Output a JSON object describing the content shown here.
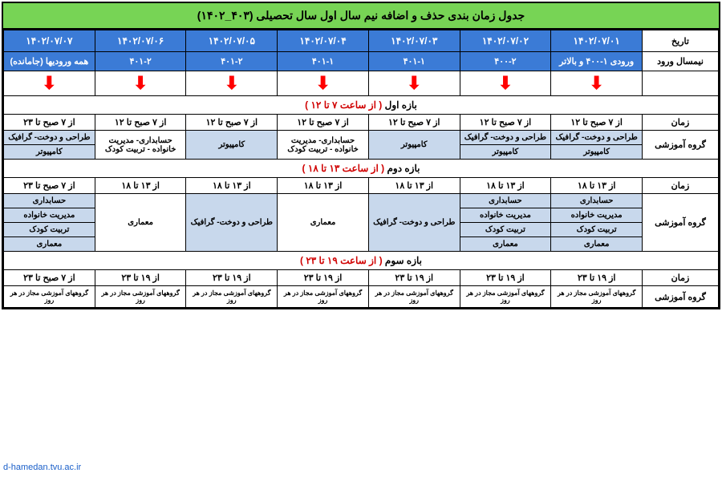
{
  "title": "جدول زمان بندی حذف و اضافه نیم سال اول سال تحصیلی (۴۰۳_۱۴۰۲)",
  "labels": {
    "date": "تاریخ",
    "entry": "نیمسال ورود",
    "time": "زمان",
    "group": "گروه آموزشی"
  },
  "dates": [
    "۱۴۰۲/۰۷/۰۱",
    "۱۴۰۲/۰۷/۰۲",
    "۱۴۰۲/۰۷/۰۳",
    "۱۴۰۲/۰۷/۰۴",
    "۱۴۰۲/۰۷/۰۵",
    "۱۴۰۲/۰۷/۰۶",
    "۱۴۰۲/۰۷/۰۷"
  ],
  "entries": [
    "ورودی ۱-۴۰۰ و بالاتر",
    "۴۰۰-۲",
    "۴۰۱-۱",
    "۴۰۱-۱",
    "۴۰۱-۲",
    "۴۰۱-۲",
    "همه ورودیها (جامانده)"
  ],
  "sections": {
    "s1": {
      "label": "بازه اول",
      "time": "( از ساعت ۷ تا ۱۲ )"
    },
    "s2": {
      "label": "بازه دوم",
      "time": "( از ساعت ۱۳ تا ۱۸ )"
    },
    "s3": {
      "label": "بازه سوم",
      "time": "( از ساعت ۱۹ تا ۲۳ )"
    }
  },
  "s1_times": [
    "از ۷ صبح تا ۱۲",
    "از ۷ صبح تا ۱۲",
    "از ۷ صبح تا ۱۲",
    "از ۷ صبح تا ۱۲",
    "از ۷ صبح تا ۱۲",
    "از ۷ صبح تا ۱۲",
    "از ۷ صبح تا ۲۳"
  ],
  "s1_groups": [
    [
      "طراحی و دوخت- گرافیک",
      "کامپیوتر"
    ],
    [
      "طراحی و دوخت- گرافیک",
      "کامپیوتر"
    ],
    [
      "کامپیوتر"
    ],
    [
      "حسابداری- مدیریت خانواده - تربیت کودک"
    ],
    [
      "کامپیوتر"
    ],
    [
      "حسابداری- مدیریت خانواده - تربیت کودک"
    ],
    [
      "طراحی و دوخت- گرافیک",
      "کامپیوتر"
    ]
  ],
  "s2_times": [
    "از ۱۳ تا ۱۸",
    "از ۱۳ تا ۱۸",
    "از ۱۳ تا ۱۸",
    "از ۱۳ تا ۱۸",
    "از ۱۳ تا ۱۸",
    "از ۱۳ تا ۱۸",
    "از ۷ صبح تا ۲۳"
  ],
  "s2_groups": [
    [
      "حسابداری",
      "مدیریت خانواده",
      "تربیت کودک",
      "معماری"
    ],
    [
      "حسابداری",
      "مدیریت خانواده",
      "تربیت کودک",
      "معماری"
    ],
    [
      "طراحی و دوخت- گرافیک"
    ],
    [
      "معماری"
    ],
    [
      "طراحی و دوخت- گرافیک"
    ],
    [
      "معماری"
    ],
    [
      "حسابداری",
      "مدیریت خانواده",
      "تربیت کودک",
      "معماری"
    ]
  ],
  "s3_times": [
    "از ۱۹ تا ۲۳",
    "از ۱۹ تا ۲۳",
    "از ۱۹ تا ۲۳",
    "از ۱۹ تا ۲۳",
    "از ۱۹ تا ۲۳",
    "از ۱۹ تا ۲۳",
    "از ۷ صبح تا ۲۳"
  ],
  "s3_footnote": "گروههای آموزشی مجاز در هر روز",
  "watermark": "d-hamedan.tvu.ac.ir",
  "colors": {
    "title_bg": "#77d455",
    "header_bg": "#3b7bd6",
    "group_bg": "#c8d8ec",
    "arrow": "#ff0000",
    "red_text": "#d00000"
  }
}
